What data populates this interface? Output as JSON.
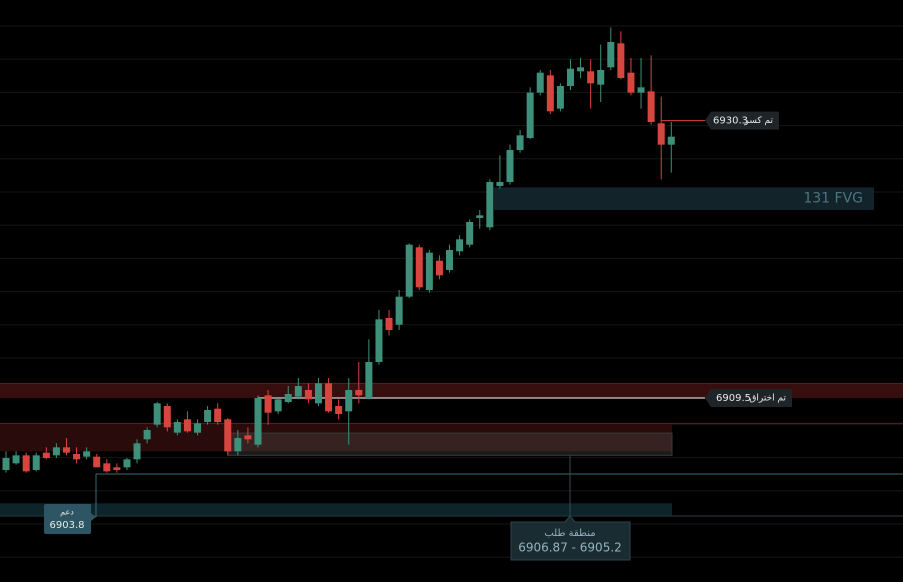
{
  "chart_data": {
    "type": "candlestick",
    "ylim": [
      6895.7,
      6939.35
    ],
    "up_color": "#3f907a",
    "down_color": "#d8453f",
    "open": [
      6904.1,
      6904.6,
      6905.2,
      6904.1,
      6905.4,
      6905.2,
      6905.8,
      6905.3,
      6905.1,
      6905.1,
      6904.6,
      6904.3,
      6904.3,
      6904.9,
      6906.4,
      6907.5,
      6908.9,
      6906.9,
      6907.9,
      6906.9,
      6907.7,
      6908.7,
      6907.9,
      6905.5,
      6906.7,
      6906.0,
      6909.7,
      6908.5,
      6909.2,
      6909.6,
      6910.1,
      6909.1,
      6910.6,
      6908.9,
      6908.5,
      6910.1,
      6909.5,
      6912.2,
      6915.5,
      6915.0,
      6917.1,
      6920.8,
      6917.6,
      6919.8,
      6919.1,
      6920.5,
      6921.0,
      6923.0,
      6922.3,
      6925.4,
      6925.7,
      6928.1,
      6929.0,
      6932.4,
      6933.7,
      6931.2,
      6932.9,
      6934.0,
      6934.0,
      6933.0,
      6934.3,
      6936.1,
      6933.9,
      6932.4,
      6932.5,
      6930.1,
      6928.5
    ],
    "high": [
      6905.5,
      6905.5,
      6905.4,
      6905.4,
      6905.8,
      6906.1,
      6906.5,
      6905.8,
      6905.8,
      6905.3,
      6904.9,
      6904.6,
      6905.0,
      6906.4,
      6907.3,
      6909.2,
      6909.1,
      6907.9,
      6908.5,
      6907.9,
      6908.9,
      6909.1,
      6908.0,
      6907.1,
      6907.3,
      6909.7,
      6910.1,
      6909.5,
      6910.4,
      6911.0,
      6910.6,
      6911.0,
      6911.0,
      6909.4,
      6911.0,
      6912.2,
      6913.9,
      6916.1,
      6916.1,
      6917.6,
      6921.1,
      6921.0,
      6920.6,
      6920.2,
      6921.0,
      6921.7,
      6922.9,
      6923.6,
      6925.9,
      6927.7,
      6928.5,
      6929.6,
      6932.8,
      6934.1,
      6934.1,
      6933.1,
      6934.9,
      6935.0,
      6934.9,
      6936.0,
      6937.3,
      6937.0,
      6935.0,
      6935.0,
      6935.2,
      6932.1,
      6930.2
    ],
    "low": [
      6903.9,
      6904.5,
      6903.9,
      6904.0,
      6904.9,
      6905.0,
      6905.2,
      6904.6,
      6904.9,
      6904.3,
      6903.9,
      6903.9,
      6904.1,
      6904.6,
      6906.1,
      6907.3,
      6907.0,
      6906.7,
      6906.9,
      6906.7,
      6907.5,
      6907.5,
      6905.2,
      6905.2,
      6906.1,
      6905.8,
      6907.5,
      6908.3,
      6909.1,
      6909.4,
      6909.1,
      6908.9,
      6908.4,
      6907.9,
      6906.0,
      6909.1,
      6909.4,
      6912.0,
      6914.2,
      6914.6,
      6917.0,
      6917.6,
      6917.4,
      6918.4,
      6918.9,
      6920.2,
      6920.8,
      6922.2,
      6922.1,
      6925.2,
      6925.5,
      6927.9,
      6928.9,
      6932.2,
      6930.8,
      6931.0,
      6932.6,
      6933.5,
      6931.2,
      6931.7,
      6934.1,
      6933.4,
      6932.2,
      6931.2,
      6930.0,
      6925.9,
      6926.4
    ],
    "close": [
      6905.0,
      6905.2,
      6904.0,
      6905.2,
      6905.0,
      6905.8,
      6905.4,
      6904.9,
      6905.5,
      6904.3,
      6904.0,
      6904.1,
      6904.9,
      6906.1,
      6907.1,
      6909.1,
      6907.3,
      6907.7,
      6907.0,
      6907.6,
      6908.6,
      6907.7,
      6905.5,
      6906.5,
      6906.4,
      6909.5,
      6908.4,
      6909.4,
      6909.8,
      6910.4,
      6909.4,
      6910.6,
      6908.5,
      6908.3,
      6910.1,
      6909.7,
      6912.2,
      6915.4,
      6914.6,
      6917.1,
      6921.0,
      6917.8,
      6920.4,
      6918.7,
      6920.6,
      6921.4,
      6922.7,
      6923.2,
      6925.7,
      6925.7,
      6928.1,
      6929.2,
      6932.4,
      6933.9,
      6931.0,
      6932.9,
      6934.2,
      6934.3,
      6933.1,
      6934.1,
      6936.2,
      6933.5,
      6932.4,
      6932.8,
      6930.2,
      6928.5,
      6929.1
    ],
    "zones": [
      {
        "high": 6910.6,
        "low": 6909.5,
        "color": "#3c1010"
      },
      {
        "high": 6907.6,
        "low": 6905.5,
        "color": "#2e0c0c"
      },
      {
        "high": 6901.6,
        "low": 6900.7,
        "color": "#0f2830"
      }
    ],
    "fvg": {
      "label": "131 FVG",
      "high": 6925.3,
      "low": 6923.6
    },
    "demand": {
      "label": "منطقة طلب",
      "range_label": "6906.87 - 6905.2",
      "high": 6906.87,
      "low": 6905.2
    },
    "break": {
      "label": "تم كسر",
      "value": 6930.3
    },
    "breakout": {
      "label": "تم اختراق",
      "value": 6909.5
    },
    "support": {
      "label": "دعم",
      "value": 6903.8
    }
  }
}
